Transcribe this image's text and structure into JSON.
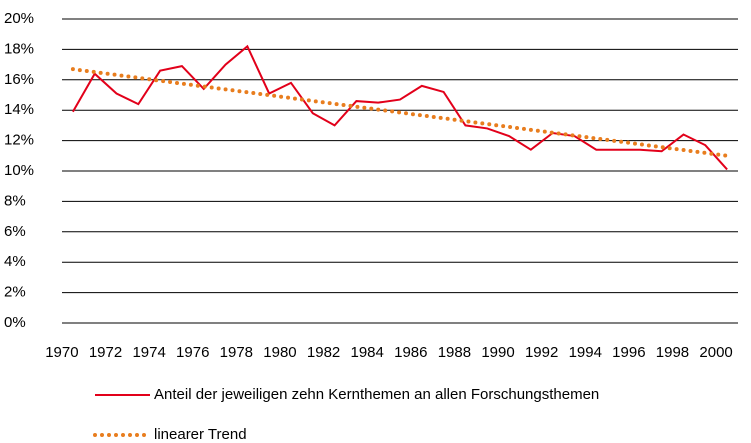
{
  "chart_data": {
    "type": "line",
    "categories": [
      "1970",
      null,
      "1972",
      null,
      "1974",
      null,
      "1976",
      null,
      "1978",
      null,
      "1980",
      null,
      "1982",
      null,
      "1984",
      null,
      "1986",
      null,
      "1988",
      null,
      "1990",
      null,
      "1992",
      null,
      "1994",
      null,
      "1996",
      null,
      "1998",
      null,
      "2000"
    ],
    "series": [
      {
        "name": "Anteil der jeweiligen zehn Kernthemen an allen Forschungsthemen",
        "color": "#e2001a",
        "style": "solid",
        "values": [
          13.9,
          16.4,
          15.1,
          14.4,
          16.6,
          16.9,
          15.4,
          17.0,
          18.2,
          15.1,
          15.8,
          13.8,
          13.0,
          14.6,
          14.5,
          14.7,
          15.6,
          15.2,
          13.0,
          12.8,
          12.3,
          11.4,
          12.5,
          12.3,
          11.4,
          11.4,
          11.4,
          11.3,
          12.4,
          11.7,
          10.1
        ]
      },
      {
        "name": "linearer Trend",
        "color": "#e87d1e",
        "style": "dotted",
        "values": [
          16.7,
          16.51,
          16.32,
          16.13,
          15.94,
          15.75,
          15.56,
          15.37,
          15.18,
          14.99,
          14.8,
          14.61,
          14.42,
          14.23,
          14.04,
          13.85,
          13.66,
          13.47,
          13.28,
          13.09,
          12.9,
          12.71,
          12.52,
          12.33,
          12.14,
          11.95,
          11.76,
          11.57,
          11.38,
          11.19,
          11.0
        ]
      }
    ],
    "ylim": [
      0,
      20
    ],
    "yticks": [
      {
        "value": 0,
        "label": "0%"
      },
      {
        "value": 2,
        "label": "2%"
      },
      {
        "value": 4,
        "label": "4%"
      },
      {
        "value": 6,
        "label": "6%"
      },
      {
        "value": 8,
        "label": "8%"
      },
      {
        "value": 10,
        "label": "10%"
      },
      {
        "value": 12,
        "label": "12%"
      },
      {
        "value": 14,
        "label": "14%"
      },
      {
        "value": 16,
        "label": "16%"
      },
      {
        "value": 18,
        "label": "18%"
      },
      {
        "value": 20,
        "label": "20%"
      }
    ],
    "grid": true
  }
}
